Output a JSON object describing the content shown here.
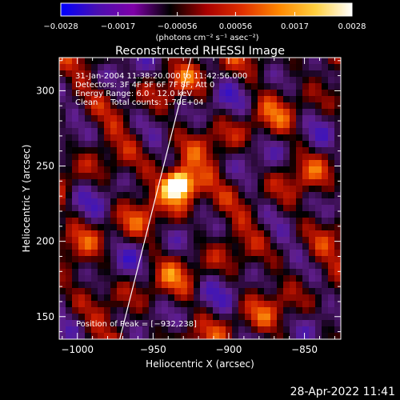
{
  "chart_data": {
    "type": "heatmap",
    "title": "Reconstructed RHESSI Image",
    "xlabel": "Heliocentric X (arcsec)",
    "ylabel": "Heliocentric Y (arcsec)",
    "xlim": [
      -1012,
      -826
    ],
    "ylim": [
      135,
      322
    ],
    "x_ticks": [
      -1000,
      -950,
      -900,
      -850
    ],
    "x_tick_labels": [
      "−1000",
      "−950",
      "−900",
      "−850"
    ],
    "y_ticks": [
      150,
      200,
      250,
      300
    ],
    "y_tick_labels": [
      "150",
      "200",
      "250",
      "300"
    ],
    "colorbar": {
      "ticks": [
        -0.0028,
        -0.0017,
        -0.00056,
        0.00056,
        0.0017,
        0.0028
      ],
      "tick_labels": [
        "−0.0028",
        "−0.0017",
        "−0.00056",
        "0.00056",
        "0.0017",
        "0.0028"
      ],
      "range": [
        -0.0028,
        0.0028
      ],
      "units_label": "(photons cm⁻² s⁻¹ asec⁻²)",
      "colors": [
        "#0000ff",
        "#4a0fb0",
        "#7f00a8",
        "#000000",
        "#a80000",
        "#e03000",
        "#ff8800",
        "#ffd040",
        "#ffffff"
      ]
    },
    "annotations": [
      "31-Jan-2004 11:38:20.000 to 11:42:56.000",
      "Detectors: 3F 4F 5F 6F 7F 8F, Att 0",
      "Energy Range: 6.0 - 12.0 keV",
      "Clean     Total counts: 1.70E+04"
    ],
    "peak_label": "Position of Peak = [−932,238]",
    "peak": {
      "x": -932,
      "y": 238
    },
    "limb_line": [
      [
        -972,
        135
      ],
      [
        -925,
        322
      ]
    ],
    "grid": false
  },
  "footer": {
    "timestamp": "28-Apr-2022 11:41"
  }
}
